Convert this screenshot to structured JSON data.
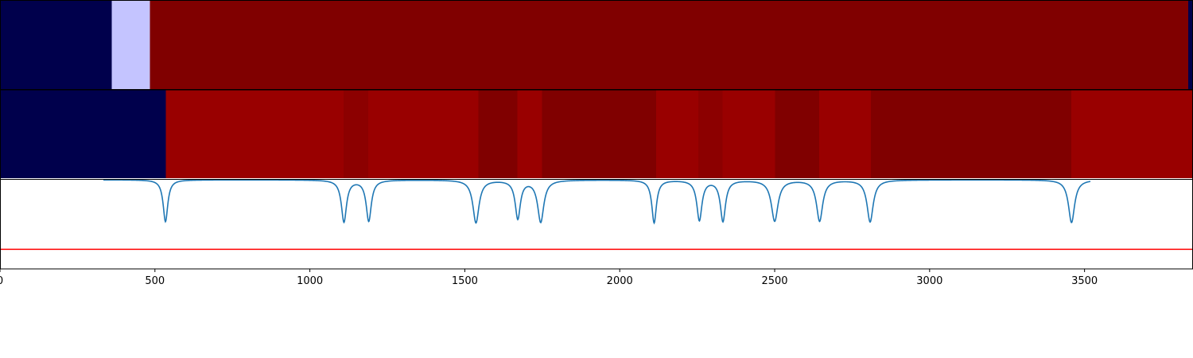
{
  "chart_data": {
    "type": "heatmap",
    "x_range": [
      0,
      3850
    ],
    "x_ticks": [
      0,
      500,
      1000,
      1500,
      2000,
      2500,
      3000,
      3500
    ],
    "x_tick_labels": [
      "0",
      "500",
      "1000",
      "1500",
      "2000",
      "2500",
      "3000",
      "3500"
    ],
    "rows": [
      {
        "segments": [
          {
            "start": 0,
            "end": 360,
            "color": "#00004c"
          },
          {
            "start": 360,
            "end": 484,
            "color": "#c4c4ff"
          },
          {
            "start": 484,
            "end": 3835,
            "color": "#800000"
          },
          {
            "start": 3835,
            "end": 3850,
            "color": "#00004c"
          }
        ]
      },
      {
        "segments": [
          {
            "start": 0,
            "end": 535,
            "color": "#00004c"
          },
          {
            "start": 535,
            "end": 1109,
            "color": "#990000"
          },
          {
            "start": 1109,
            "end": 1189,
            "color": "#8c0000"
          },
          {
            "start": 1189,
            "end": 1544,
            "color": "#990000"
          },
          {
            "start": 1544,
            "end": 1669,
            "color": "#800000"
          },
          {
            "start": 1669,
            "end": 1749,
            "color": "#990000"
          },
          {
            "start": 1749,
            "end": 2117,
            "color": "#800000"
          },
          {
            "start": 2117,
            "end": 2253,
            "color": "#990000"
          },
          {
            "start": 2253,
            "end": 2332,
            "color": "#8c0000"
          },
          {
            "start": 2332,
            "end": 2501,
            "color": "#990000"
          },
          {
            "start": 2501,
            "end": 2644,
            "color": "#800000"
          },
          {
            "start": 2644,
            "end": 2811,
            "color": "#990000"
          },
          {
            "start": 2811,
            "end": 3457,
            "color": "#800000"
          },
          {
            "start": 3457,
            "end": 3850,
            "color": "#990000"
          }
        ]
      }
    ],
    "line": {
      "color": "#1f77b4",
      "baseline": 1.0,
      "y_range": [
        0,
        1.0
      ],
      "dips": [
        {
          "x": 534,
          "depth": 0.47,
          "width": 9
        },
        {
          "x": 1110,
          "depth": 0.47,
          "width": 10
        },
        {
          "x": 1190,
          "depth": 0.46,
          "width": 10
        },
        {
          "x": 1536,
          "depth": 0.48,
          "width": 12
        },
        {
          "x": 1671,
          "depth": 0.43,
          "width": 10
        },
        {
          "x": 1745,
          "depth": 0.47,
          "width": 12
        },
        {
          "x": 2111,
          "depth": 0.48,
          "width": 9
        },
        {
          "x": 2257,
          "depth": 0.45,
          "width": 10
        },
        {
          "x": 2333,
          "depth": 0.46,
          "width": 10
        },
        {
          "x": 2500,
          "depth": 0.46,
          "width": 13
        },
        {
          "x": 2645,
          "depth": 0.46,
          "width": 12
        },
        {
          "x": 2808,
          "depth": 0.47,
          "width": 12
        },
        {
          "x": 3458,
          "depth": 0.48,
          "width": 12
        }
      ]
    },
    "threshold": {
      "value": 0.22,
      "color": "#ff0000"
    }
  }
}
